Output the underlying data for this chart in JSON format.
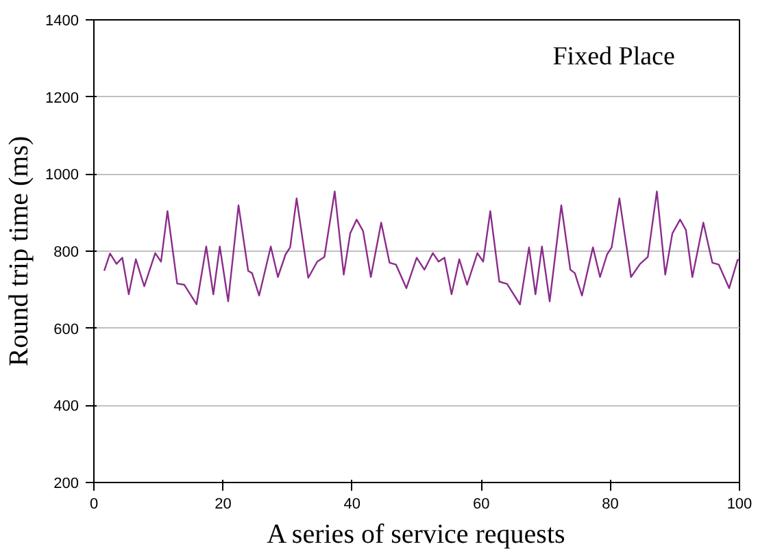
{
  "chart_data": {
    "type": "line",
    "xlabel": "A series of service requests",
    "ylabel": "Round trip time (ms)",
    "annotations": [
      "Fixed Place"
    ],
    "xlim": [
      0,
      100
    ],
    "xticks": [
      0,
      20,
      40,
      60,
      80,
      100
    ],
    "ylim": [
      200,
      1400
    ],
    "yticks": [
      200,
      400,
      600,
      800,
      1000,
      1200,
      1400
    ],
    "grid": "y",
    "marker": "none",
    "line_style": "solid",
    "series": [
      {
        "color": "#8b2c8b",
        "x": [
          1.6,
          2.5,
          3.5,
          4.4,
          5.4,
          6.5,
          7.8,
          9.5,
          10.4,
          11.4,
          12.9,
          14,
          15.9,
          17.4,
          18.5,
          19.5,
          20.8,
          22.4,
          23.9,
          24.5,
          25.6,
          27.4,
          28.5,
          29.7,
          30.4,
          31.4,
          33.2,
          34.6,
          35.7,
          37.3,
          38.7,
          39.7,
          40.7,
          41.7,
          42.9,
          44.5,
          45.8,
          46.8,
          48.4,
          50.0,
          51.2,
          52.5,
          53.4,
          54.3,
          55.4,
          56.6,
          57.8,
          59.4,
          60.3,
          61.4,
          62.8,
          64.0,
          66.0,
          67.4,
          68.4,
          69.4,
          70.6,
          72.4,
          73.8,
          74.5,
          75.6,
          77.3,
          78.4,
          79.5,
          80.2,
          81.4,
          83.2,
          84.6,
          85.8,
          87.2,
          88.5,
          89.6,
          90.8,
          91.7,
          92.7,
          94.4,
          95.8,
          96.8,
          98.4,
          99.7,
          100
        ],
        "values": [
          749,
          794,
          767,
          783,
          688,
          779,
          709,
          795,
          773,
          904,
          716,
          713,
          662,
          812,
          688,
          812,
          670,
          919,
          749,
          743,
          685,
          812,
          733,
          792,
          810,
          937,
          731,
          773,
          785,
          955,
          739,
          846,
          882,
          852,
          733,
          874,
          770,
          765,
          704,
          783,
          752,
          795,
          773,
          783,
          688,
          779,
          713,
          795,
          773,
          904,
          721,
          715,
          662,
          810,
          688,
          812,
          670,
          919,
          752,
          743,
          685,
          810,
          733,
          792,
          810,
          937,
          733,
          767,
          785,
          955,
          739,
          846,
          882,
          855,
          733,
          874,
          770,
          765,
          704,
          777,
          779
        ]
      }
    ]
  }
}
